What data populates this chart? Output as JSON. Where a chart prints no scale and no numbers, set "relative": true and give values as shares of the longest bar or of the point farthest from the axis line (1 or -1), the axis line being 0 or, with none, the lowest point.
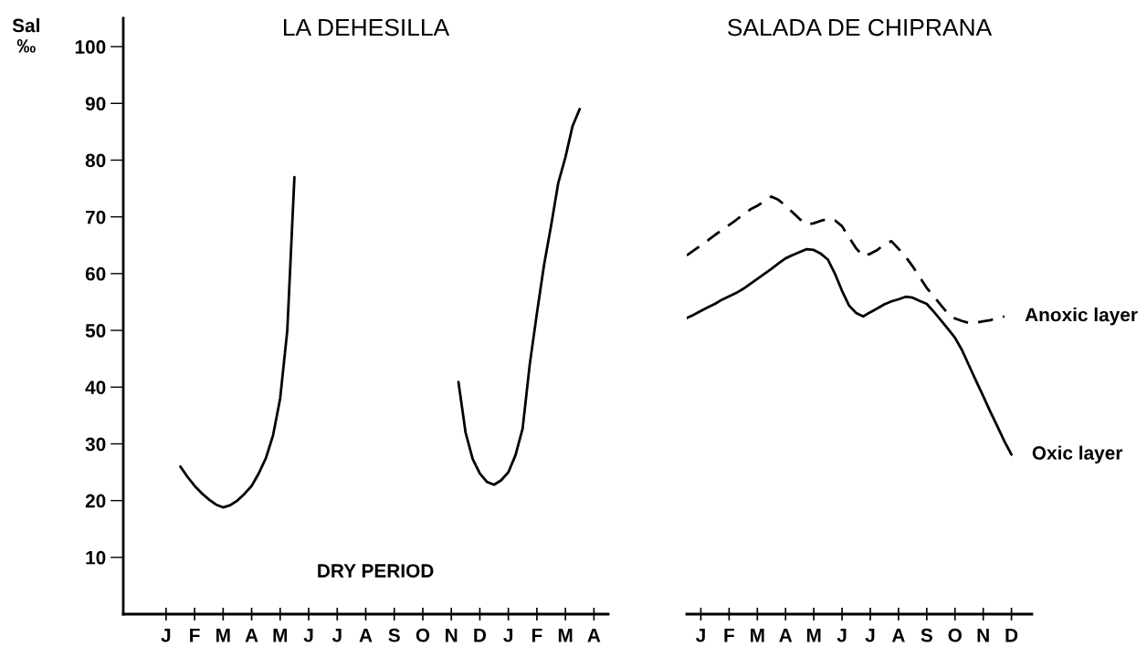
{
  "chart_data": [
    {
      "type": "line",
      "title": "LA DEHESILLA",
      "ylabel": "Sal\n‰",
      "annotations": [
        "DRY PERIOD"
      ],
      "ylim": [
        0,
        105
      ],
      "categories": [
        "J",
        null,
        null,
        null,
        "F",
        null,
        null,
        null,
        "M",
        null,
        null,
        null,
        "A",
        null,
        null,
        null,
        "M",
        null,
        null,
        null,
        "J",
        null,
        null,
        null,
        "J",
        null,
        null,
        null,
        "A",
        null,
        null,
        null,
        "S",
        null,
        null,
        null,
        "O",
        null,
        null,
        null,
        "N",
        null,
        null,
        null,
        "D",
        null,
        null,
        null,
        "J",
        null,
        null,
        null,
        "F",
        null,
        null,
        null,
        "M",
        null,
        null,
        null,
        "A"
      ],
      "yticks": [
        10,
        20,
        30,
        40,
        50,
        60,
        70,
        80,
        90,
        100
      ],
      "series": [
        {
          "color": "#000000",
          "line_style": "solid",
          "values": [
            null,
            null,
            26,
            24.2,
            22.6,
            21.3,
            20.2,
            19.3,
            18.8,
            19.2,
            20,
            21.2,
            22.6,
            24.8,
            27.5,
            31.5,
            38,
            50,
            77,
            null,
            null,
            null,
            null,
            null,
            null,
            null,
            null,
            null,
            null,
            null,
            null,
            null,
            null,
            null,
            null,
            null,
            null,
            null,
            null,
            null,
            null,
            40.9,
            32,
            27.3,
            24.8,
            23.3,
            22.8,
            23.6,
            25,
            28,
            32.7,
            44,
            53,
            61.5,
            68.5,
            76,
            80.5,
            86,
            89,
            null,
            null
          ]
        }
      ]
    },
    {
      "type": "line",
      "title": "SALADA DE CHIPRANA",
      "tick_labels": "x",
      "relative": true,
      "categories": [
        null,
        null,
        "J",
        null,
        null,
        null,
        "F",
        null,
        null,
        null,
        "M",
        null,
        null,
        null,
        "A",
        null,
        null,
        null,
        "M",
        null,
        null,
        null,
        "J",
        null,
        null,
        null,
        "J",
        null,
        null,
        null,
        "A",
        null,
        null,
        null,
        "S",
        null,
        null,
        null,
        "O",
        null,
        null,
        null,
        "N",
        null,
        null,
        null,
        "D"
      ],
      "series": [
        {
          "name": "Anoxic layer",
          "color": "#000000",
          "line_style": "dashed",
          "values": [
            0.859,
            0.871,
            0.883,
            0.895,
            0.908,
            0.92,
            0.932,
            0.944,
            0.957,
            0.969,
            0.978,
            0.989,
            1,
            0.992,
            0.978,
            0.962,
            0.946,
            0.933,
            0.936,
            0.942,
            0.946,
            0.943,
            0.929,
            0.902,
            0.876,
            0.857,
            0.863,
            0.872,
            0.886,
            0.893,
            0.875,
            0.856,
            0.833,
            0.807,
            0.781,
            0.761,
            0.74,
            0.72,
            0.708,
            0.702,
            0.697,
            0.698,
            0.701,
            0.704,
            0.709,
            0.713,
            null
          ]
        },
        {
          "name": "Oxic layer",
          "color": "#000000",
          "line_style": "solid",
          "values": [
            0.709,
            0.717,
            0.726,
            0.735,
            0.743,
            0.753,
            0.761,
            0.769,
            0.779,
            0.791,
            0.803,
            0.815,
            0.827,
            0.84,
            0.852,
            0.86,
            0.867,
            0.874,
            0.872,
            0.863,
            0.849,
            0.815,
            0.774,
            0.739,
            0.721,
            0.713,
            0.723,
            0.732,
            0.742,
            0.749,
            0.754,
            0.76,
            0.758,
            0.75,
            0.743,
            0.724,
            0.704,
            0.683,
            0.662,
            0.632,
            0.595,
            0.558,
            0.522,
            0.485,
            0.45,
            0.414,
            0.382
          ]
        }
      ]
    }
  ]
}
